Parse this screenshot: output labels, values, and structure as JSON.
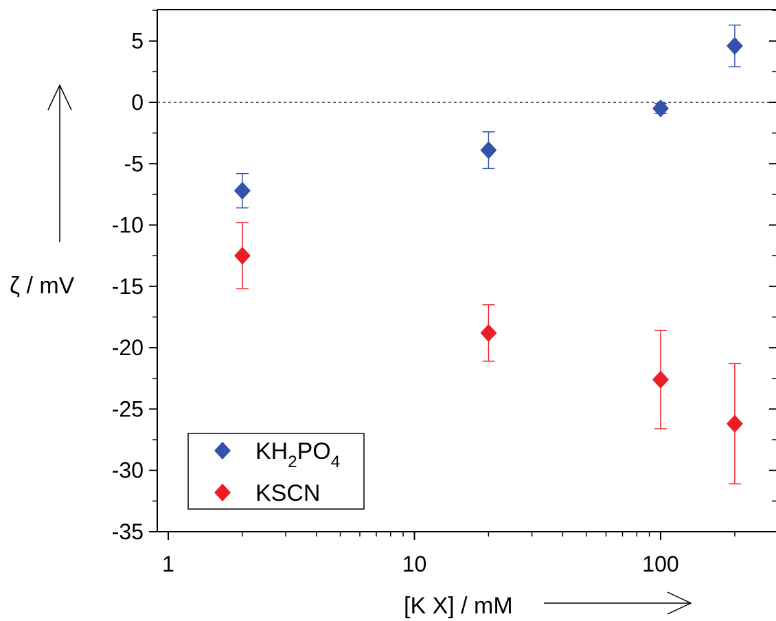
{
  "chart_data": {
    "type": "scatter",
    "x_scale": "log",
    "xlabel": "[K X] / mM",
    "ylabel": "ζ / mV",
    "xlim": [
      1,
      280
    ],
    "ylim": [
      -35,
      7.5
    ],
    "x_ticks": [
      1,
      10,
      100
    ],
    "x_tick_labels": [
      "1",
      "10",
      "100"
    ],
    "y_ticks": [
      5,
      0,
      -5,
      -10,
      -15,
      -20,
      -25,
      -30,
      -35
    ],
    "y_tick_labels": [
      "5",
      "0",
      "-5",
      "-10",
      "-15",
      "-20",
      "-25",
      "-30",
      "-35"
    ],
    "reference_line": {
      "y": 0,
      "style": "dashed"
    },
    "grid": false,
    "legend_position": "bottom-left",
    "series": [
      {
        "name": "KH2PO4",
        "legend_main": "KH",
        "legend_sub1": "2",
        "legend_mid": "PO",
        "legend_sub2": "4",
        "color": "#3352a8",
        "marker": "diamond",
        "x": [
          2,
          20,
          100,
          200
        ],
        "y": [
          -7.2,
          -3.9,
          -0.5,
          4.6
        ],
        "error": [
          1.4,
          1.5,
          0.4,
          1.7
        ]
      },
      {
        "name": "KSCN",
        "legend_main": "KSCN",
        "color": "#ee1c25",
        "marker": "diamond",
        "x": [
          2,
          20,
          100,
          200
        ],
        "y": [
          -12.5,
          -18.8,
          -22.6,
          -26.2
        ],
        "error": [
          2.7,
          2.3,
          4.0,
          4.9
        ]
      }
    ]
  }
}
